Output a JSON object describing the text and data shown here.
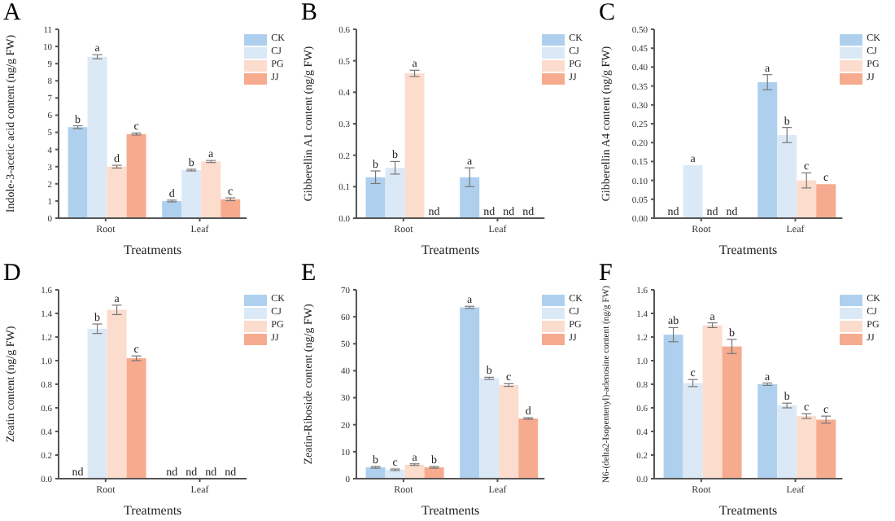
{
  "chart_data": [
    {
      "type": "bar",
      "title": "A",
      "xlabel": "Treatments",
      "ylabel": "Indole-3-acetic acid content (ng/g FW)",
      "categories": [
        "Root",
        "Leaf"
      ],
      "ylim": [
        0,
        11
      ],
      "yticks": [
        0,
        1,
        2,
        3,
        4,
        5,
        6,
        7,
        8,
        9,
        10,
        11
      ],
      "grid": false,
      "legend": "top right",
      "series": [
        {
          "name": "CK",
          "color": "#aed0ee",
          "values": [
            5.3,
            1.0
          ],
          "errors": [
            0.08,
            0.05
          ],
          "value_labels": [
            "b",
            "d"
          ]
        },
        {
          "name": "CJ",
          "color": "#dbe9f7",
          "values": [
            9.4,
            2.8
          ],
          "errors": [
            0.12,
            0.05
          ],
          "value_labels": [
            "a",
            "b"
          ]
        },
        {
          "name": "PG",
          "color": "#fcdccd",
          "values": [
            3.0,
            3.3
          ],
          "errors": [
            0.08,
            0.06
          ],
          "value_labels": [
            "d",
            "a"
          ]
        },
        {
          "name": "JJ",
          "color": "#f6ab8e",
          "values": [
            4.9,
            1.1
          ],
          "errors": [
            0.06,
            0.08
          ],
          "value_labels": [
            "c",
            "c"
          ]
        }
      ]
    },
    {
      "type": "bar",
      "title": "B",
      "xlabel": "Treatments",
      "ylabel": "Gibberellin A1 content (ng/g FW)",
      "categories": [
        "Root",
        "Leaf"
      ],
      "ylim": [
        0,
        0.6
      ],
      "yticks": [
        {
          "value": 0,
          "label": "0.0"
        },
        0.1,
        0.2,
        0.3,
        0.4,
        0.5,
        0.6
      ],
      "grid": false,
      "legend": "top right",
      "series": [
        {
          "name": "CK",
          "color": "#aed0ee",
          "values": [
            0.13,
            0.13
          ],
          "errors": [
            0.02,
            0.03
          ],
          "value_labels": [
            "b",
            "a"
          ]
        },
        {
          "name": "CJ",
          "color": "#dbe9f7",
          "values": [
            0.16,
            0
          ],
          "errors": [
            0.02,
            null
          ],
          "value_labels": [
            "b",
            "nd"
          ]
        },
        {
          "name": "PG",
          "color": "#fcdccd",
          "values": [
            0.46,
            0
          ],
          "errors": [
            0.01,
            null
          ],
          "value_labels": [
            "a",
            "nd"
          ]
        },
        {
          "name": "JJ",
          "color": "#f6ab8e",
          "values": [
            0,
            0
          ],
          "errors": [
            null,
            null
          ],
          "value_labels": [
            "nd",
            "nd"
          ]
        }
      ]
    },
    {
      "type": "bar",
      "title": "C",
      "xlabel": "Treatments",
      "ylabel": "Gibberellin A4 content (ng/g FW)",
      "categories": [
        "Root",
        "Leaf"
      ],
      "ylim": [
        0,
        0.5
      ],
      "yticks": [
        {
          "value": 0,
          "label": "0.00"
        },
        {
          "value": 0.05,
          "label": "0.05"
        },
        {
          "value": 0.1,
          "label": "0.10"
        },
        {
          "value": 0.15,
          "label": "0.15"
        },
        {
          "value": 0.2,
          "label": "0.20"
        },
        {
          "value": 0.25,
          "label": "0.25"
        },
        {
          "value": 0.3,
          "label": "0.30"
        },
        {
          "value": 0.35,
          "label": "0.35"
        },
        {
          "value": 0.4,
          "label": "0.40"
        },
        {
          "value": 0.45,
          "label": "0.45"
        },
        {
          "value": 0.5,
          "label": "0.50"
        }
      ],
      "grid": false,
      "legend": "top right",
      "series": [
        {
          "name": "CK",
          "color": "#aed0ee",
          "values": [
            0,
            0.36
          ],
          "errors": [
            null,
            0.02
          ],
          "value_labels": [
            "nd",
            "a"
          ]
        },
        {
          "name": "CJ",
          "color": "#dbe9f7",
          "values": [
            0.14,
            0.22
          ],
          "errors": [
            null,
            0.02
          ],
          "value_labels": [
            "a",
            "b"
          ]
        },
        {
          "name": "PG",
          "color": "#fcdccd",
          "values": [
            0,
            0.1
          ],
          "errors": [
            null,
            0.02
          ],
          "value_labels": [
            "nd",
            "c"
          ]
        },
        {
          "name": "JJ",
          "color": "#f6ab8e",
          "values": [
            0,
            0.09
          ],
          "errors": [
            null,
            null
          ],
          "value_labels": [
            "nd",
            "c"
          ]
        }
      ]
    },
    {
      "type": "bar",
      "title": "D",
      "xlabel": "Treatments",
      "ylabel": "Zeatin content (ng/g FW)",
      "categories": [
        "Root",
        "Leaf"
      ],
      "ylim": [
        0,
        1.6
      ],
      "yticks": [
        {
          "value": 0,
          "label": "0.0"
        },
        0.2,
        0.4,
        0.6,
        0.8,
        {
          "value": 1,
          "label": "1.0"
        },
        1.2,
        1.4,
        1.6
      ],
      "grid": false,
      "legend": "top right",
      "series": [
        {
          "name": "CK",
          "color": "#aed0ee",
          "values": [
            0,
            0
          ],
          "errors": [
            null,
            null
          ],
          "value_labels": [
            "nd",
            "nd"
          ]
        },
        {
          "name": "CJ",
          "color": "#dbe9f7",
          "values": [
            1.27,
            0
          ],
          "errors": [
            0.04,
            null
          ],
          "value_labels": [
            "b",
            "nd"
          ]
        },
        {
          "name": "PG",
          "color": "#fcdccd",
          "values": [
            1.43,
            0
          ],
          "errors": [
            0.04,
            null
          ],
          "value_labels": [
            "a",
            "nd"
          ]
        },
        {
          "name": "JJ",
          "color": "#f6ab8e",
          "values": [
            1.02,
            0
          ],
          "errors": [
            0.02,
            null
          ],
          "value_labels": [
            "c",
            "nd"
          ]
        }
      ]
    },
    {
      "type": "bar",
      "title": "E",
      "xlabel": "Treatments",
      "ylabel": "Zeatin-Riboside content (ng/g FW)",
      "categories": [
        "Root",
        "Leaf"
      ],
      "ylim": [
        0,
        70
      ],
      "yticks": [
        0,
        10,
        20,
        30,
        40,
        50,
        60,
        70
      ],
      "grid": false,
      "legend": "top right",
      "series": [
        {
          "name": "CK",
          "color": "#aed0ee",
          "values": [
            4.2,
            63.5
          ],
          "errors": [
            0.3,
            0.4
          ],
          "value_labels": [
            "b",
            "a"
          ]
        },
        {
          "name": "CJ",
          "color": "#dbe9f7",
          "values": [
            3.3,
            37.2
          ],
          "errors": [
            0.3,
            0.4
          ],
          "value_labels": [
            "c",
            "b"
          ]
        },
        {
          "name": "PG",
          "color": "#fcdccd",
          "values": [
            5.2,
            34.7
          ],
          "errors": [
            0.3,
            0.5
          ],
          "value_labels": [
            "a",
            "c"
          ]
        },
        {
          "name": "JJ",
          "color": "#f6ab8e",
          "values": [
            4.2,
            22.3
          ],
          "errors": [
            0.3,
            0.3
          ],
          "value_labels": [
            "b",
            "d"
          ]
        }
      ]
    },
    {
      "type": "bar",
      "title": "F",
      "xlabel": "Treatments",
      "ylabel": "N6-(delta2-Isopentenyl)-adenosine content (ng/g FW)",
      "categories": [
        "Root",
        "Leaf"
      ],
      "ylim": [
        0,
        1.6
      ],
      "yticks": [
        {
          "value": 0,
          "label": "0.0"
        },
        0.2,
        0.4,
        0.6,
        0.8,
        {
          "value": 1,
          "label": "1.0"
        },
        1.2,
        1.4,
        1.6
      ],
      "grid": false,
      "legend": "top right",
      "series": [
        {
          "name": "CK",
          "color": "#aed0ee",
          "values": [
            1.22,
            0.8
          ],
          "errors": [
            0.06,
            0.01
          ],
          "value_labels": [
            "ab",
            "a"
          ]
        },
        {
          "name": "CJ",
          "color": "#dbe9f7",
          "values": [
            0.81,
            0.62
          ],
          "errors": [
            0.03,
            0.02
          ],
          "value_labels": [
            "c",
            "b"
          ]
        },
        {
          "name": "PG",
          "color": "#fcdccd",
          "values": [
            1.3,
            0.53
          ],
          "errors": [
            0.02,
            0.02
          ],
          "value_labels": [
            "a",
            "c"
          ]
        },
        {
          "name": "JJ",
          "color": "#f6ab8e",
          "values": [
            1.12,
            0.5
          ],
          "errors": [
            0.06,
            0.03
          ],
          "value_labels": [
            "b",
            "c"
          ]
        }
      ]
    }
  ]
}
